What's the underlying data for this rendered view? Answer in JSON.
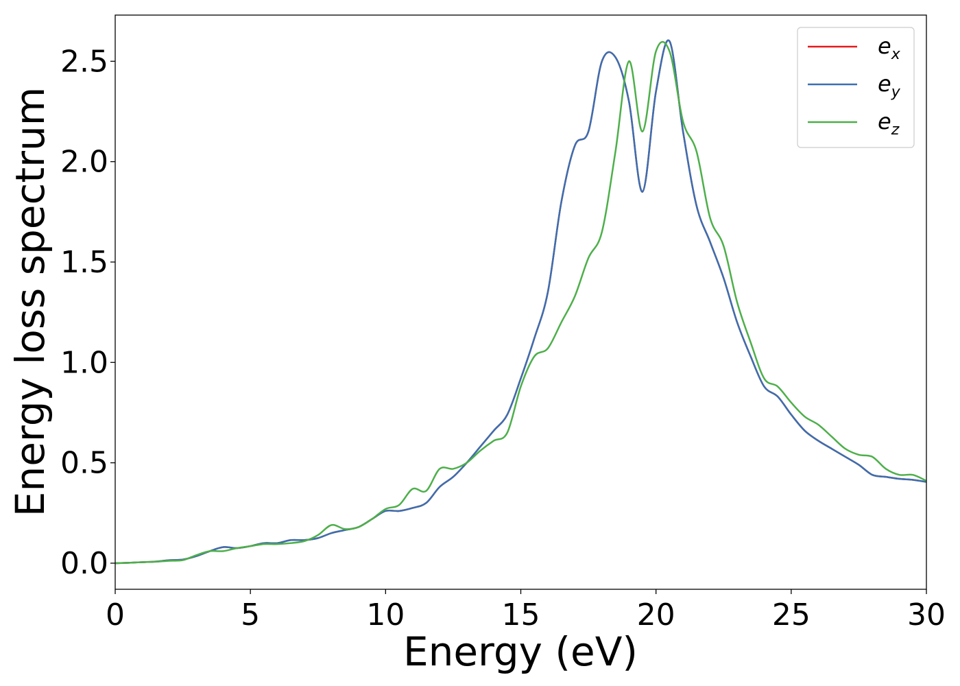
{
  "chart_data": {
    "type": "line",
    "xlabel": "Energy (eV)",
    "ylabel": "Energy loss spectrum",
    "xlim": [
      0,
      30
    ],
    "ylim": [
      -0.13,
      2.73
    ],
    "xticks": [
      "0",
      "5",
      "10",
      "15",
      "20",
      "25",
      "30"
    ],
    "xtick_values": [
      0,
      5,
      10,
      15,
      20,
      25,
      30
    ],
    "yticks": [
      "0.0",
      "0.5",
      "1.0",
      "1.5",
      "2.0",
      "2.5"
    ],
    "ytick_values": [
      0.0,
      0.5,
      1.0,
      1.5,
      2.0,
      2.5
    ],
    "grid": false,
    "legend_placement": "top-right",
    "x": [
      0,
      0.5,
      1,
      1.5,
      2,
      2.5,
      3,
      3.5,
      4,
      4.5,
      5,
      5.5,
      6,
      6.5,
      7,
      7.5,
      8,
      8.5,
      9,
      9.5,
      10,
      10.5,
      11,
      11.5,
      12,
      12.5,
      13,
      13.5,
      14,
      14.5,
      15,
      15.5,
      16,
      16.5,
      17,
      17.5,
      18,
      18.5,
      19,
      19.5,
      20,
      20.5,
      21,
      21.5,
      22,
      22.5,
      23,
      23.5,
      24,
      24.5,
      25,
      25.5,
      26,
      26.5,
      27,
      27.5,
      28,
      28.5,
      29,
      29.5,
      30
    ],
    "series": [
      {
        "name": "e",
        "subscript": "x",
        "color": "#e41a1c",
        "values": [
          0.0,
          0.002,
          0.005,
          0.008,
          0.015,
          0.018,
          0.035,
          0.06,
          0.08,
          0.075,
          0.085,
          0.1,
          0.1,
          0.115,
          0.115,
          0.125,
          0.15,
          0.165,
          0.18,
          0.22,
          0.26,
          0.26,
          0.275,
          0.3,
          0.38,
          0.43,
          0.5,
          0.58,
          0.66,
          0.74,
          0.92,
          1.12,
          1.35,
          1.8,
          2.08,
          2.15,
          2.5,
          2.52,
          2.3,
          1.85,
          2.35,
          2.6,
          2.15,
          1.78,
          1.6,
          1.42,
          1.2,
          1.03,
          0.88,
          0.83,
          0.74,
          0.66,
          0.61,
          0.57,
          0.53,
          0.49,
          0.44,
          0.43,
          0.42,
          0.415,
          0.405
        ]
      },
      {
        "name": "e",
        "subscript": "y",
        "color": "#3a6fb0",
        "values": [
          0.0,
          0.002,
          0.005,
          0.008,
          0.015,
          0.018,
          0.035,
          0.06,
          0.08,
          0.075,
          0.085,
          0.1,
          0.1,
          0.115,
          0.115,
          0.125,
          0.15,
          0.165,
          0.18,
          0.22,
          0.26,
          0.26,
          0.275,
          0.3,
          0.38,
          0.43,
          0.5,
          0.58,
          0.66,
          0.74,
          0.92,
          1.12,
          1.35,
          1.8,
          2.08,
          2.15,
          2.5,
          2.52,
          2.3,
          1.85,
          2.35,
          2.6,
          2.15,
          1.78,
          1.6,
          1.42,
          1.2,
          1.03,
          0.88,
          0.83,
          0.74,
          0.66,
          0.61,
          0.57,
          0.53,
          0.49,
          0.44,
          0.43,
          0.42,
          0.415,
          0.405
        ]
      },
      {
        "name": "e",
        "subscript": "z",
        "color": "#4daf4a",
        "values": [
          0.0,
          0.002,
          0.005,
          0.007,
          0.012,
          0.015,
          0.04,
          0.06,
          0.06,
          0.075,
          0.085,
          0.095,
          0.095,
          0.1,
          0.11,
          0.14,
          0.19,
          0.17,
          0.18,
          0.22,
          0.27,
          0.29,
          0.37,
          0.36,
          0.47,
          0.47,
          0.5,
          0.56,
          0.61,
          0.65,
          0.88,
          1.03,
          1.07,
          1.2,
          1.33,
          1.52,
          1.65,
          2.05,
          2.5,
          2.15,
          2.55,
          2.55,
          2.2,
          2.05,
          1.72,
          1.58,
          1.3,
          1.1,
          0.92,
          0.88,
          0.8,
          0.73,
          0.69,
          0.63,
          0.57,
          0.54,
          0.53,
          0.47,
          0.44,
          0.44,
          0.41
        ]
      }
    ]
  }
}
